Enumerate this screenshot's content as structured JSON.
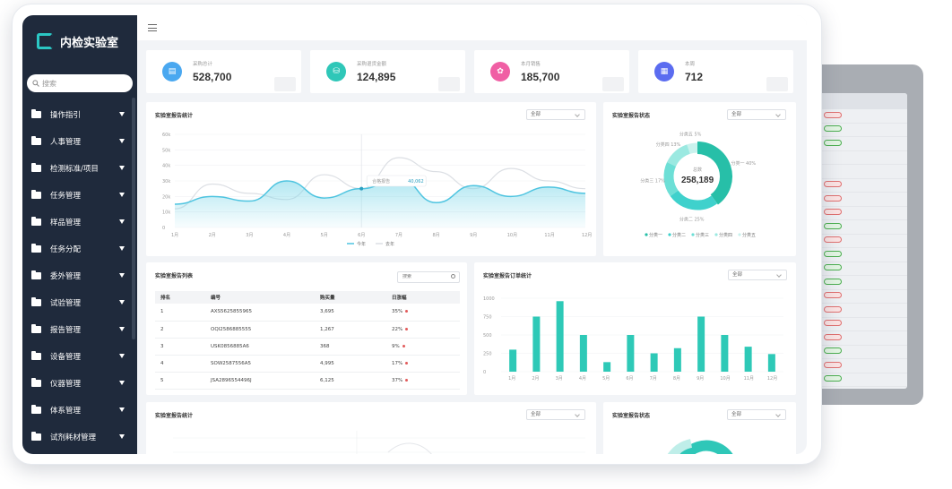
{
  "app": {
    "title": "内检实验室",
    "search_placeholder": "搜索"
  },
  "sidebar": {
    "items": [
      {
        "label": "操作指引"
      },
      {
        "label": "人事管理"
      },
      {
        "label": "检测标准/项目"
      },
      {
        "label": "任务管理"
      },
      {
        "label": "样品管理"
      },
      {
        "label": "任务分配"
      },
      {
        "label": "委外管理"
      },
      {
        "label": "试验管理"
      },
      {
        "label": "报告管理"
      },
      {
        "label": "设备管理"
      },
      {
        "label": "仪器管理"
      },
      {
        "label": "体系管理"
      },
      {
        "label": "试剂耗材管理"
      }
    ]
  },
  "stats": [
    {
      "label": "采购总计",
      "value": "528,700",
      "color": "#4aa8f0"
    },
    {
      "label": "采购退货金额",
      "value": "124,895",
      "color": "#2fc7b8"
    },
    {
      "label": "本月销售",
      "value": "185,700",
      "color": "#f05fa4"
    },
    {
      "label": "本周",
      "value": "712",
      "color": "#5b6cf0"
    }
  ],
  "line_card": {
    "title": "实验室报告统计",
    "select_value": "全部",
    "tooltip_label": "合格报告",
    "tooltip_value": "40,062"
  },
  "donut_card": {
    "title": "实验室报告状态",
    "select_value": "全部",
    "center_label": "总数",
    "center_value": "258,189"
  },
  "table_card": {
    "title": "实验室报告列表",
    "search_placeholder": "搜索",
    "columns": [
      "排名",
      "编号",
      "购买量",
      "日涨幅"
    ],
    "rows": [
      {
        "rank": "1",
        "code": "AXS5625855965",
        "qty": "3,695",
        "change": "35%"
      },
      {
        "rank": "2",
        "code": "OQI2586885555",
        "qty": "1,267",
        "change": "22%"
      },
      {
        "rank": "3",
        "code": "USK0856885A6",
        "qty": "368",
        "change": "9%"
      },
      {
        "rank": "4",
        "code": "SOW2587556A5",
        "qty": "4,995",
        "change": "17%"
      },
      {
        "rank": "5",
        "code": "JSA2896554496J",
        "qty": "6,125",
        "change": "37%"
      }
    ]
  },
  "bar_card": {
    "title": "实验室报告订单统计",
    "select_value": "全部"
  },
  "bottom_left": {
    "title": "实验室报告统计",
    "select_value": "全部"
  },
  "bottom_right": {
    "title": "实验室报告状态",
    "select_value": "全部"
  },
  "chart_data": [
    {
      "type": "line",
      "title": "实验室报告统计",
      "categories": [
        "1月",
        "2月",
        "3月",
        "4月",
        "5月",
        "6月",
        "7月",
        "8月",
        "9月",
        "10月",
        "11月",
        "12月"
      ],
      "ylim": [
        0,
        60
      ],
      "yticks": [
        "0",
        "10k",
        "20k",
        "30k",
        "40k",
        "50k",
        "60k"
      ],
      "series": [
        {
          "name": "今年",
          "values": [
            15,
            20,
            17,
            30,
            19,
            25,
            32,
            16,
            27,
            20,
            26,
            22
          ]
        },
        {
          "name": "去年",
          "values": [
            12,
            28,
            22,
            18,
            34,
            25,
            45,
            36,
            25,
            38,
            30,
            25
          ]
        }
      ],
      "legend": "bottom"
    },
    {
      "type": "pie",
      "title": "实验室报告状态",
      "categories": [
        "分类一",
        "分类二",
        "分类三",
        "分类四",
        "分类五"
      ],
      "values": [
        40,
        25,
        17,
        13,
        5
      ],
      "slice_labels": [
        "分类一 40%",
        "分类二 25%",
        "分类三 17%",
        "分类四 13%",
        "分类五 5%"
      ],
      "legend": "bottom"
    },
    {
      "type": "bar",
      "title": "实验室报告订单统计",
      "categories": [
        "1月",
        "2月",
        "3月",
        "4月",
        "5月",
        "6月",
        "7月",
        "8月",
        "9月",
        "10月",
        "11月",
        "12月"
      ],
      "values": [
        300,
        750,
        960,
        500,
        130,
        500,
        250,
        320,
        750,
        500,
        340,
        240
      ],
      "ylim": [
        0,
        1000
      ],
      "yticks": [
        "0",
        "250",
        "500",
        "750",
        "1000"
      ]
    }
  ]
}
